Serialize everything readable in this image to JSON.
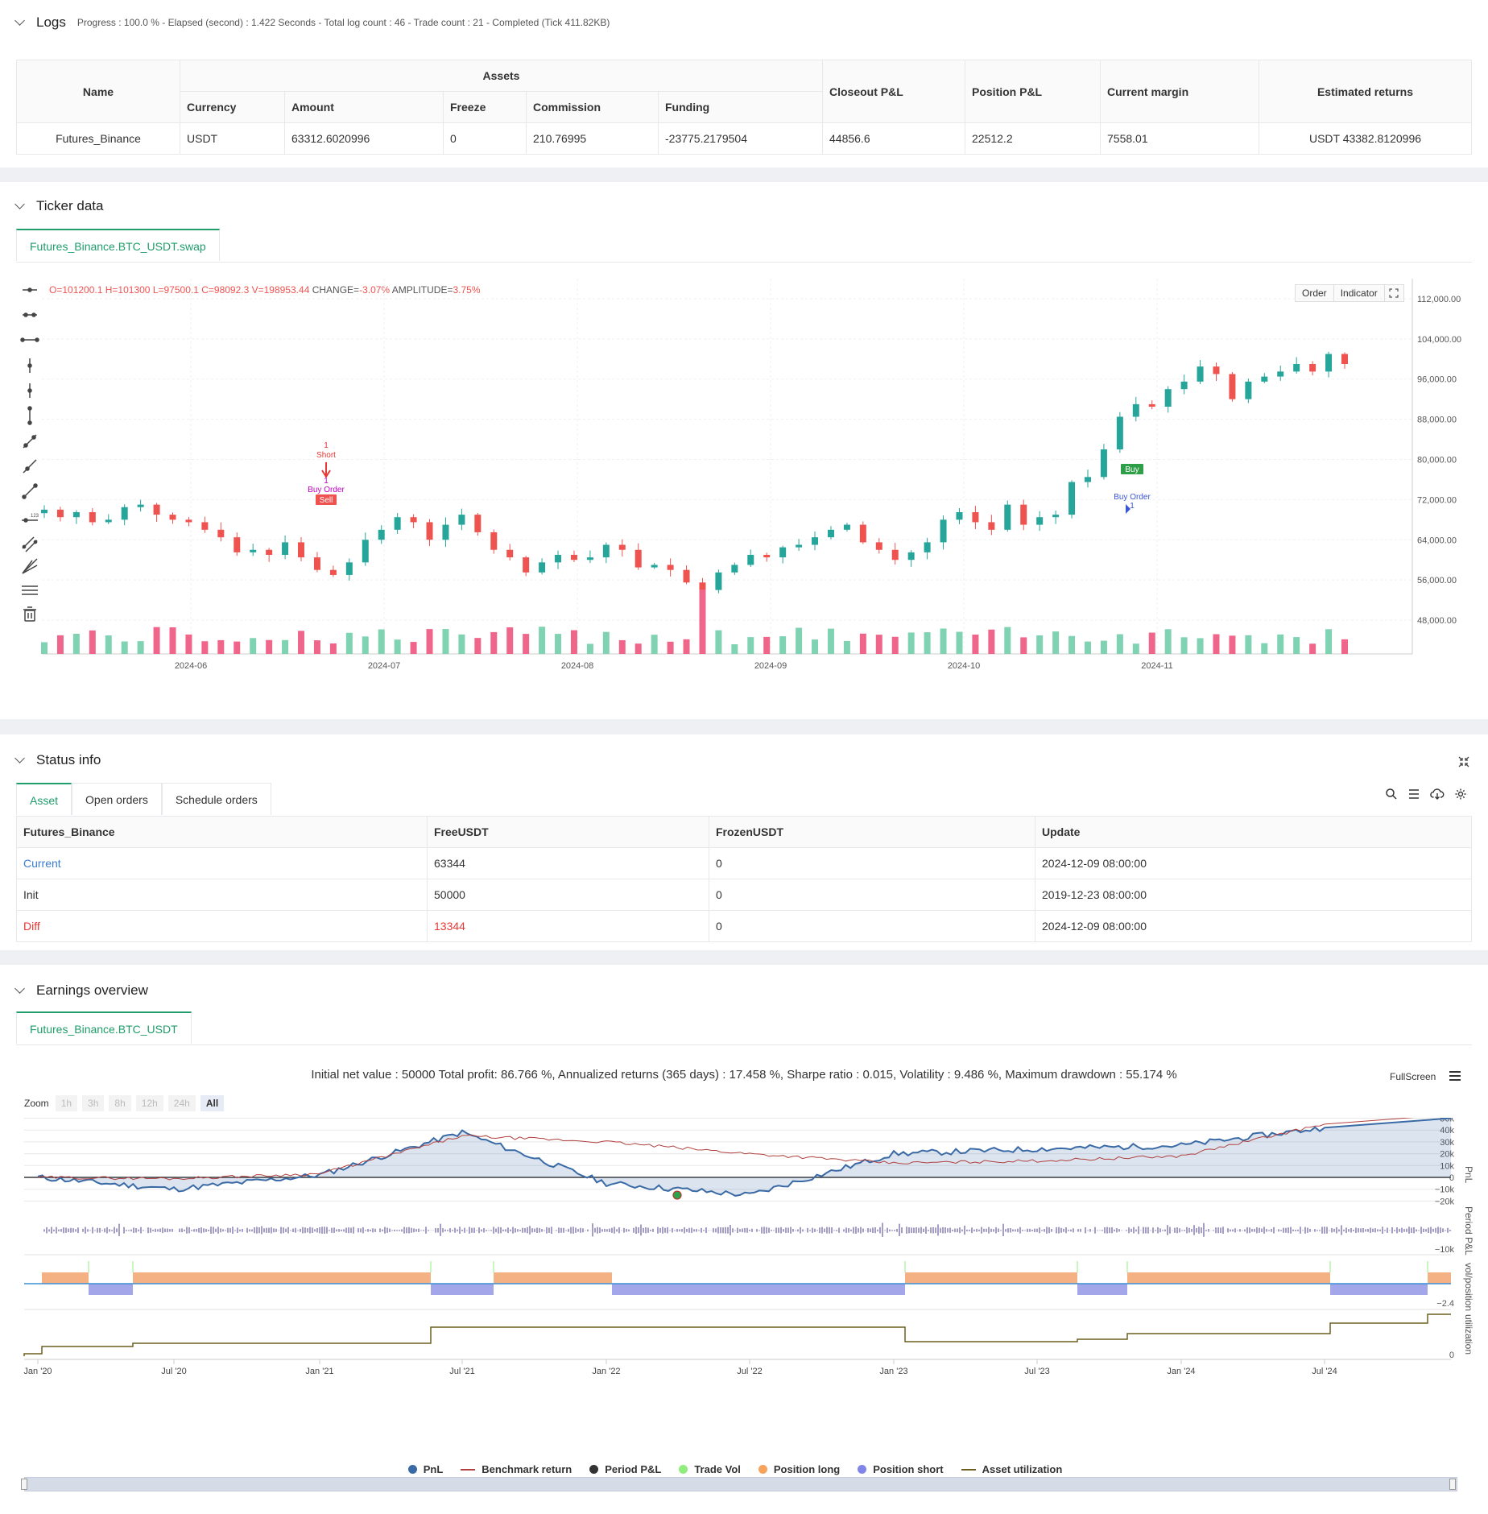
{
  "logs": {
    "title": "Logs",
    "meta": "Progress : 100.0 % - Elapsed (second) : 1.422  Seconds - Total log count : 46 - Trade count : 21 - Completed (Tick 411.82KB)"
  },
  "assets_table": {
    "h_name": "Name",
    "h_assets": "Assets",
    "h_currency": "Currency",
    "h_amount": "Amount",
    "h_freeze": "Freeze",
    "h_commission": "Commission",
    "h_funding": "Funding",
    "h_closeout": "Closeout P&L",
    "h_position": "Position P&L",
    "h_margin": "Current margin",
    "h_est": "Estimated returns",
    "row": {
      "name": "Futures_Binance",
      "currency": "USDT",
      "amount": "63312.6020996",
      "freeze": "0",
      "commission": "210.76995",
      "funding": "-23775.2179504",
      "closeout": "44856.6",
      "position": "22512.2",
      "margin": "7558.01",
      "est": "USDT 43382.8120996"
    }
  },
  "ticker": {
    "title": "Ticker data",
    "tab": "Futures_Binance.BTC_USDT.swap",
    "ohlc": {
      "o": "O=101200.1",
      "h": "H=101300",
      "l": "L=97500.1",
      "c": "C=98092.3",
      "v": "V=198953.44",
      "change_label": "CHANGE=",
      "change": "-3.07%",
      "amp_label": "AMPLITUDE=",
      "amp": "3.75%"
    },
    "btn_order": "Order",
    "btn_indicator": "Indicator",
    "yticks": [
      "112,000.00",
      "104,000.00",
      "96,000.00",
      "88,000.00",
      "80,000.00",
      "72,000.00",
      "64,000.00",
      "56,000.00",
      "48,000.00"
    ],
    "xticks": [
      "2024-06",
      "2024-07",
      "2024-08",
      "2024-09",
      "2024-10",
      "2024-11"
    ],
    "marks": {
      "short_n": "1",
      "short": "Short",
      "buyorder_top_n": "1",
      "buyorder_top": "Buy Order",
      "sell": "Sell",
      "buy": "Buy",
      "buyorder_bottom": "Buy Order",
      "buyorder_bottom_n": "1"
    },
    "colors": {
      "up": "#26a69a",
      "down": "#ef5350",
      "up_vol": "#7fd3b3",
      "down_vol": "#f0668a"
    }
  },
  "status": {
    "title": "Status info",
    "tabs": [
      "Asset",
      "Open orders",
      "Schedule orders"
    ],
    "headers": [
      "Futures_Binance",
      "FreeUSDT",
      "FrozenUSDT",
      "Update"
    ],
    "rows": [
      {
        "label": "Current",
        "free": "63344",
        "frozen": "0",
        "update": "2024-12-09 08:00:00"
      },
      {
        "label": "Init",
        "free": "50000",
        "frozen": "0",
        "update": "2019-12-23 08:00:00"
      },
      {
        "label": "Diff",
        "free": "13344",
        "frozen": "0",
        "update": "2024-12-09 08:00:00"
      }
    ]
  },
  "earnings": {
    "title": "Earnings overview",
    "tab": "Futures_Binance.BTC_USDT",
    "summary": "Initial net value : 50000 Total profit: 86.766 %, Annualized returns (365 days) : 17.458 %, Sharpe ratio : 0.015, Volatility : 9.486 %, Maximum drawdown : 55.174 %",
    "fullscreen": "FullScreen",
    "zoom": "Zoom",
    "zoom_opts": [
      "1h",
      "3h",
      "8h",
      "12h",
      "24h",
      "All"
    ],
    "pnl_ticks": [
      "60k",
      "50k",
      "40k",
      "30k",
      "20k",
      "10k",
      "0",
      "−10k",
      "−20k"
    ],
    "period_tick": "−10k",
    "pos_tick": "−2.4",
    "util_tick": "0",
    "axis_labels": {
      "pnl": "PnL",
      "period": "Period P&L",
      "pos": "vol/position",
      "util": "utilization"
    },
    "xticks": [
      "Jan '20",
      "Jul '20",
      "Jan '21",
      "Jul '21",
      "Jan '22",
      "Jul '22",
      "Jan '23",
      "Jul '23",
      "Jan '24",
      "Jul '24"
    ],
    "legend": [
      {
        "name": "PnL",
        "color": "#3a6aa5",
        "kind": "dot"
      },
      {
        "name": "Benchmark return",
        "color": "#b0413e",
        "kind": "line"
      },
      {
        "name": "Period P&L",
        "color": "#333333",
        "kind": "dot"
      },
      {
        "name": "Trade Vol",
        "color": "#90ed7d",
        "kind": "dot"
      },
      {
        "name": "Position long",
        "color": "#f7a35c",
        "kind": "dot"
      },
      {
        "name": "Position short",
        "color": "#8085e9",
        "kind": "dot"
      },
      {
        "name": "Asset utilization",
        "color": "#6b5e1e",
        "kind": "line"
      }
    ]
  },
  "chart_data": [
    {
      "type": "candlestick",
      "title": "Futures_Binance.BTC_USDT.swap",
      "x_range": [
        "2024-05",
        "2024-12"
      ],
      "ylim": [
        44000,
        116000
      ],
      "last_bar": {
        "open": 101200.1,
        "high": 101300,
        "low": 97500.1,
        "close": 98092.3,
        "volume": 198953.44
      },
      "approx_closes": [
        70000,
        68500,
        69500,
        67500,
        68000,
        70500,
        71000,
        69000,
        68000,
        67500,
        66000,
        64500,
        61500,
        62000,
        61000,
        63500,
        60500,
        58000,
        57000,
        59500,
        64000,
        66000,
        68500,
        67500,
        64000,
        67000,
        69000,
        65500,
        62000,
        60500,
        57500,
        59500,
        61000,
        60000,
        60500,
        63000,
        62000,
        58500,
        59000,
        58000,
        55500,
        54000,
        57500,
        59000,
        61000,
        60500,
        62500,
        63000,
        64500,
        66000,
        67000,
        63500,
        62000,
        60000,
        61500,
        63500,
        68000,
        69500,
        67500,
        66000,
        71000,
        67000,
        68500,
        69000,
        75500,
        76500,
        82000,
        88500,
        91000,
        90500,
        94000,
        95500,
        98500,
        97000,
        92000,
        95500,
        96500,
        97500,
        99000,
        97500,
        101000,
        99000
      ]
    },
    {
      "type": "line",
      "title": "Earnings overview",
      "x": [
        "Jan '20",
        "Jul '20",
        "Jan '21",
        "Jul '21",
        "Jan '22",
        "Jul '22",
        "Jan '23",
        "Jul '23",
        "Jan '24",
        "Jul '24"
      ],
      "series": [
        {
          "name": "PnL",
          "values": [
            0,
            -10000,
            2000,
            38000,
            -5000,
            5000,
            20000,
            24000,
            26000,
            40000
          ]
        },
        {
          "name": "Benchmark return",
          "values": [
            0,
            -1000,
            3000,
            35000,
            30000,
            20000,
            12000,
            14000,
            18000,
            45000
          ]
        }
      ],
      "ylim": [
        -20000,
        60000
      ]
    }
  ]
}
